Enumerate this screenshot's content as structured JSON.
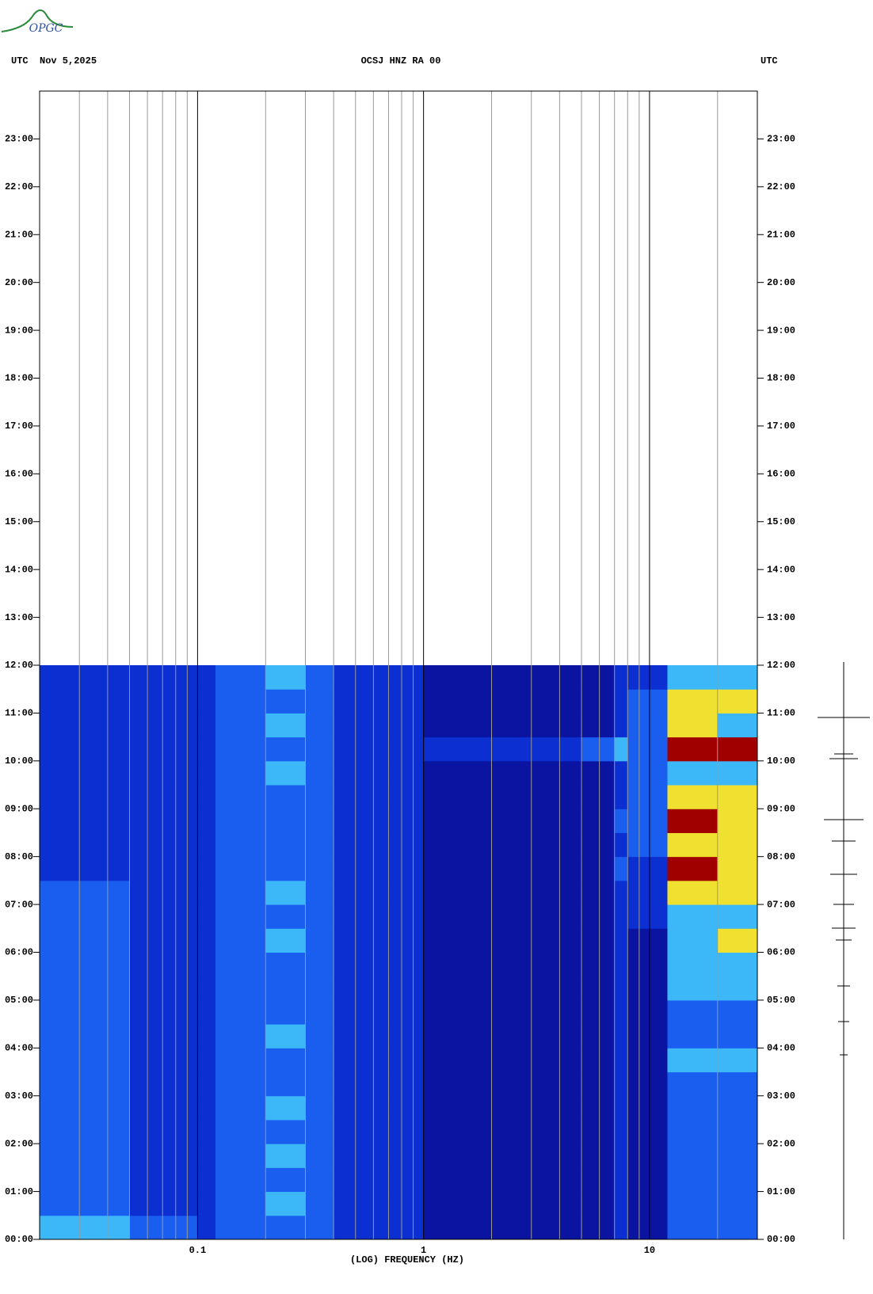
{
  "logo": "OPGC",
  "chart_data": {
    "type": "heatmap",
    "title": "OCSJ HNZ RA 00",
    "left_label": "UTC  Nov 5,2025",
    "right_label": "UTC",
    "x_label": "(LOG) FREQUENCY (HZ)",
    "xscale": "log",
    "xlim": [
      0.02,
      30
    ],
    "xticks": [
      0.1,
      1,
      10
    ],
    "xminor": [
      0.02,
      0.03,
      0.04,
      0.05,
      0.06,
      0.07,
      0.08,
      0.09,
      0.2,
      0.3,
      0.4,
      0.5,
      0.6,
      0.7,
      0.8,
      0.9,
      2,
      3,
      4,
      5,
      6,
      7,
      8,
      9,
      20
    ],
    "ylim": [
      0,
      24
    ],
    "yticks": [
      {
        "value": 0,
        "label": "00:00"
      },
      {
        "value": 1,
        "label": "01:00"
      },
      {
        "value": 2,
        "label": "02:00"
      },
      {
        "value": 3,
        "label": "03:00"
      },
      {
        "value": 4,
        "label": "04:00"
      },
      {
        "value": 5,
        "label": "05:00"
      },
      {
        "value": 6,
        "label": "06:00"
      },
      {
        "value": 7,
        "label": "07:00"
      },
      {
        "value": 8,
        "label": "08:00"
      },
      {
        "value": 9,
        "label": "09:00"
      },
      {
        "value": 10,
        "label": "10:00"
      },
      {
        "value": 11,
        "label": "11:00"
      },
      {
        "value": 12,
        "label": "12:00"
      },
      {
        "value": 13,
        "label": "13:00"
      },
      {
        "value": 14,
        "label": "14:00"
      },
      {
        "value": 15,
        "label": "15:00"
      },
      {
        "value": 16,
        "label": "16:00"
      },
      {
        "value": 17,
        "label": "17:00"
      },
      {
        "value": 18,
        "label": "18:00"
      },
      {
        "value": 19,
        "label": "19:00"
      },
      {
        "value": 20,
        "label": "20:00"
      },
      {
        "value": 21,
        "label": "21:00"
      },
      {
        "value": 22,
        "label": "22:00"
      },
      {
        "value": 23,
        "label": "23:00"
      }
    ],
    "x_edges": [
      0.02,
      0.05,
      0.1,
      0.12,
      0.2,
      0.3,
      0.4,
      1,
      5,
      7,
      8,
      12,
      20,
      30
    ],
    "y_edges": [
      0,
      0.5,
      1,
      1.5,
      2,
      2.5,
      3,
      3.5,
      4,
      4.5,
      5,
      5.5,
      6,
      6.5,
      7,
      7.5,
      8,
      8.5,
      9,
      9.5,
      10,
      10.5,
      11,
      11.5,
      12
    ],
    "colors": [
      "#0a14a0",
      "#0b2fd0",
      "#1a5ef0",
      "#3cb8f8",
      "#f0e030",
      "#a00000"
    ],
    "values": [
      [
        3,
        2,
        1,
        2,
        2,
        2,
        1,
        0,
        0,
        1,
        0,
        2,
        2
      ],
      [
        2,
        1,
        1,
        2,
        3,
        2,
        1,
        0,
        0,
        1,
        0,
        2,
        2
      ],
      [
        2,
        1,
        1,
        2,
        2,
        2,
        1,
        0,
        0,
        1,
        0,
        2,
        2
      ],
      [
        2,
        1,
        1,
        2,
        3,
        2,
        1,
        0,
        0,
        1,
        0,
        2,
        2
      ],
      [
        2,
        1,
        1,
        2,
        2,
        2,
        1,
        0,
        0,
        1,
        0,
        2,
        2
      ],
      [
        2,
        1,
        1,
        2,
        3,
        2,
        1,
        0,
        0,
        1,
        0,
        2,
        2
      ],
      [
        2,
        1,
        1,
        2,
        2,
        2,
        1,
        0,
        0,
        1,
        0,
        2,
        2
      ],
      [
        2,
        1,
        1,
        2,
        2,
        2,
        1,
        0,
        0,
        1,
        0,
        3,
        3
      ],
      [
        2,
        1,
        1,
        2,
        3,
        2,
        1,
        0,
        0,
        1,
        0,
        2,
        2
      ],
      [
        2,
        1,
        1,
        2,
        2,
        2,
        1,
        0,
        0,
        1,
        0,
        2,
        2
      ],
      [
        2,
        1,
        1,
        2,
        2,
        2,
        1,
        0,
        0,
        1,
        0,
        3,
        3
      ],
      [
        2,
        1,
        1,
        2,
        2,
        2,
        1,
        0,
        0,
        1,
        0,
        3,
        3
      ],
      [
        2,
        1,
        1,
        2,
        3,
        2,
        1,
        0,
        0,
        1,
        0,
        3,
        4
      ],
      [
        2,
        1,
        1,
        2,
        2,
        2,
        1,
        0,
        0,
        1,
        1,
        3,
        3
      ],
      [
        2,
        1,
        1,
        2,
        3,
        2,
        1,
        0,
        0,
        1,
        1,
        4,
        4
      ],
      [
        1,
        1,
        1,
        2,
        2,
        2,
        1,
        0,
        0,
        2,
        1,
        5,
        4
      ],
      [
        1,
        1,
        1,
        2,
        2,
        2,
        1,
        0,
        0,
        1,
        2,
        4,
        4
      ],
      [
        1,
        1,
        1,
        2,
        2,
        2,
        1,
        0,
        0,
        2,
        2,
        5,
        4
      ],
      [
        1,
        1,
        1,
        2,
        2,
        2,
        1,
        0,
        0,
        1,
        2,
        4,
        4
      ],
      [
        1,
        1,
        1,
        2,
        3,
        2,
        1,
        0,
        0,
        1,
        2,
        3,
        3
      ],
      [
        1,
        1,
        1,
        2,
        2,
        2,
        1,
        1,
        2,
        3,
        2,
        5,
        5
      ],
      [
        1,
        1,
        1,
        2,
        3,
        2,
        1,
        0,
        0,
        1,
        2,
        4,
        3
      ],
      [
        1,
        1,
        1,
        2,
        2,
        2,
        1,
        0,
        0,
        1,
        2,
        4,
        4
      ],
      [
        1,
        1,
        1,
        2,
        3,
        2,
        1,
        0,
        0,
        1,
        1,
        3,
        3
      ]
    ]
  }
}
